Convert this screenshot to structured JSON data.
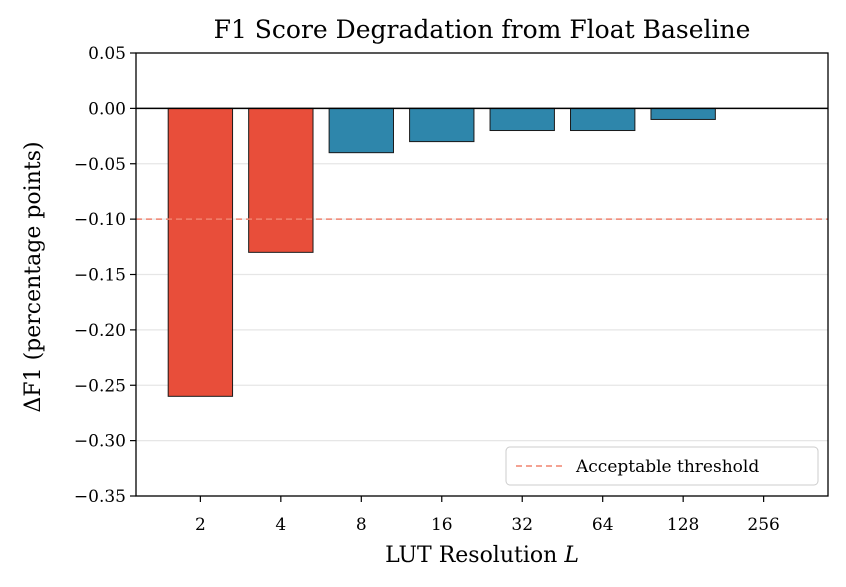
{
  "chart_data": {
    "type": "bar",
    "title": "F1 Score Degradation from Float Baseline",
    "xlabel_text": "LUT Resolution ",
    "xlabel_var": "L",
    "ylabel": "ΔF1 (percentage points)",
    "categories": [
      "2",
      "4",
      "8",
      "16",
      "32",
      "64",
      "128",
      "256"
    ],
    "values": [
      -0.26,
      -0.13,
      -0.04,
      -0.03,
      -0.02,
      -0.02,
      -0.01,
      0.0
    ],
    "ylim": [
      -0.35,
      0.05
    ],
    "yticks": [
      0.05,
      0.0,
      -0.05,
      -0.1,
      -0.15,
      -0.2,
      -0.25,
      -0.3,
      -0.35
    ],
    "ytick_labels": [
      "0.05",
      "0.00",
      "−0.05",
      "−0.10",
      "−0.15",
      "−0.20",
      "−0.25",
      "−0.30",
      "−0.35"
    ],
    "threshold": -0.1,
    "legend": {
      "label": "Acceptable threshold",
      "position": "lower-right"
    },
    "grid": "y",
    "colors": {
      "above_threshold": "#2e86ab",
      "below_threshold": "#e84e3a",
      "threshold_line": "#f0836f",
      "zero_line": "#000000",
      "grid": "#e6e6e6"
    }
  }
}
